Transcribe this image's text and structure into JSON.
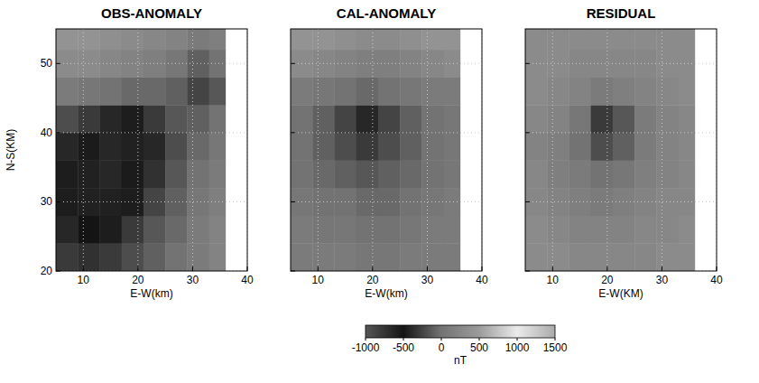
{
  "chart_data": [
    {
      "type": "heatmap",
      "title": "OBS-ANOMALY",
      "x_label": "E-W(km)",
      "y_label": "N-S(KM)",
      "xlim": [
        5,
        40
      ],
      "ylim": [
        20,
        55
      ],
      "xticks": [
        10,
        20,
        30,
        40
      ],
      "yticks": [
        20,
        30,
        40,
        50
      ],
      "grid": true,
      "x_edges": [
        5,
        9,
        13,
        17,
        21,
        25,
        29,
        33,
        36
      ],
      "y_edges": [
        20,
        24,
        28,
        32,
        36,
        40,
        44,
        48,
        52,
        55
      ],
      "cells": [
        [
          -300,
          -350,
          -300,
          -200,
          -100,
          0,
          100,
          200
        ],
        [
          -400,
          -500,
          -450,
          -300,
          -150,
          -50,
          100,
          200
        ],
        [
          -450,
          -600,
          -600,
          -450,
          -250,
          -100,
          50,
          150
        ],
        [
          -450,
          -600,
          -650,
          -550,
          -350,
          -150,
          0,
          100
        ],
        [
          -400,
          -550,
          -650,
          -600,
          -400,
          -200,
          -50,
          50
        ],
        [
          -200,
          -300,
          -400,
          -450,
          -300,
          -150,
          -100,
          0
        ],
        [
          100,
          50,
          0,
          -50,
          -50,
          -100,
          -250,
          -150
        ],
        [
          300,
          300,
          250,
          200,
          150,
          50,
          -100,
          0
        ],
        [
          400,
          400,
          350,
          300,
          250,
          200,
          100,
          150
        ]
      ]
    },
    {
      "type": "heatmap",
      "title": "CAL-ANOMALY",
      "x_label": "E-W(km)",
      "xlim": [
        5,
        40
      ],
      "ylim": [
        20,
        55
      ],
      "xticks": [
        10,
        20,
        30,
        40
      ],
      "yticks": [
        20,
        30,
        40,
        50
      ],
      "grid": true,
      "tick_labels": "x",
      "x_edges": [
        5,
        9,
        13,
        17,
        21,
        25,
        29,
        33,
        36
      ],
      "y_edges": [
        20,
        24,
        28,
        32,
        36,
        40,
        44,
        48,
        52,
        55
      ],
      "cells": [
        [
          100,
          100,
          100,
          50,
          50,
          100,
          100,
          100
        ],
        [
          100,
          50,
          50,
          0,
          0,
          50,
          100,
          100
        ],
        [
          50,
          0,
          0,
          -50,
          -50,
          0,
          50,
          100
        ],
        [
          0,
          -50,
          -100,
          -150,
          -100,
          -50,
          0,
          50
        ],
        [
          0,
          -100,
          -200,
          -300,
          -200,
          -100,
          0,
          50
        ],
        [
          0,
          -100,
          -250,
          -400,
          -250,
          -100,
          0,
          50
        ],
        [
          100,
          50,
          0,
          -50,
          0,
          50,
          100,
          100
        ],
        [
          300,
          250,
          200,
          150,
          150,
          200,
          250,
          300
        ],
        [
          400,
          400,
          350,
          300,
          300,
          350,
          400,
          400
        ]
      ]
    },
    {
      "type": "heatmap",
      "title": "RESIDUAL",
      "x_label": "E-W(KM)",
      "xlim": [
        5,
        40
      ],
      "ylim": [
        20,
        55
      ],
      "xticks": [
        10,
        20,
        30,
        40
      ],
      "yticks": [
        20,
        30,
        40,
        50
      ],
      "grid": true,
      "tick_labels": "x",
      "x_edges": [
        5,
        9,
        13,
        17,
        21,
        25,
        29,
        33,
        36
      ],
      "y_edges": [
        20,
        24,
        28,
        32,
        36,
        40,
        44,
        48,
        52,
        55
      ],
      "cells": [
        [
          300,
          300,
          250,
          250,
          250,
          250,
          300,
          300
        ],
        [
          300,
          250,
          200,
          200,
          200,
          250,
          250,
          300
        ],
        [
          250,
          200,
          150,
          100,
          150,
          200,
          250,
          250
        ],
        [
          250,
          150,
          100,
          0,
          50,
          150,
          200,
          250
        ],
        [
          200,
          150,
          0,
          -200,
          -100,
          100,
          200,
          250
        ],
        [
          250,
          200,
          50,
          -300,
          -150,
          100,
          200,
          250
        ],
        [
          300,
          250,
          200,
          100,
          150,
          200,
          250,
          300
        ],
        [
          300,
          300,
          250,
          250,
          250,
          250,
          300,
          300
        ],
        [
          300,
          300,
          300,
          300,
          300,
          300,
          300,
          300
        ]
      ]
    }
  ],
  "colorbar": {
    "range": [
      -1000,
      1500
    ],
    "ticks": [
      -1000,
      -500,
      0,
      500,
      1000,
      1500
    ],
    "label": "nT"
  }
}
